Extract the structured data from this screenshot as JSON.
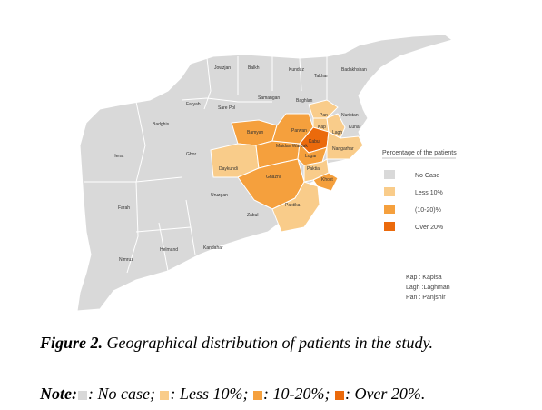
{
  "map": {
    "legend": {
      "title": "Percentage of the patients",
      "items": [
        {
          "label": "No Case",
          "color": "#d9d9d9"
        },
        {
          "label": "Less 10%",
          "color": "#f9cc8a"
        },
        {
          "label": "(10-20)%",
          "color": "#f5a03d"
        },
        {
          "label": "Over 20%",
          "color": "#eb6a0c"
        }
      ]
    },
    "abbreviations": [
      "Kap : Kapisa",
      "Lagh :Laghman",
      "Pan : Panjshir"
    ],
    "provinces": [
      {
        "name": "Jowzjan",
        "category": "No Case"
      },
      {
        "name": "Balkh",
        "category": "No Case"
      },
      {
        "name": "Kunduz",
        "category": "No Case"
      },
      {
        "name": "Takhar",
        "category": "No Case"
      },
      {
        "name": "Badakhshan",
        "category": "No Case"
      },
      {
        "name": "Faryab",
        "category": "No Case"
      },
      {
        "name": "Sare Pol",
        "category": "No Case"
      },
      {
        "name": "Samangan",
        "category": "No Case"
      },
      {
        "name": "Baghlan",
        "category": "No Case"
      },
      {
        "name": "Badghis",
        "category": "No Case"
      },
      {
        "name": "Nuristan",
        "category": "No Case"
      },
      {
        "name": "Herat",
        "category": "No Case"
      },
      {
        "name": "Ghor",
        "category": "No Case"
      },
      {
        "name": "Farah",
        "category": "No Case"
      },
      {
        "name": "Uruzgan",
        "category": "No Case"
      },
      {
        "name": "Zabul",
        "category": "No Case"
      },
      {
        "name": "Helmand",
        "category": "No Case"
      },
      {
        "name": "Kandahar",
        "category": "No Case"
      },
      {
        "name": "Nimruz",
        "category": "No Case"
      },
      {
        "name": "Kunar",
        "category": "No Case"
      },
      {
        "name": "Bamyan",
        "category": "(10-20)%"
      },
      {
        "name": "Daykundi",
        "category": "Less 10%"
      },
      {
        "name": "Ghazni",
        "category": "(10-20)%"
      },
      {
        "name": "Maidan Wardak",
        "category": "(10-20)%"
      },
      {
        "name": "Parwan",
        "category": "(10-20)%"
      },
      {
        "name": "Kap",
        "category": "Less 10%"
      },
      {
        "name": "Pan",
        "category": "Less 10%"
      },
      {
        "name": "Kabul",
        "category": "Over 20%"
      },
      {
        "name": "Lagh",
        "category": "Less 10%"
      },
      {
        "name": "Nangarhar",
        "category": "Less 10%"
      },
      {
        "name": "Logar",
        "category": "(10-20)%"
      },
      {
        "name": "Paktia",
        "category": "Less 10%"
      },
      {
        "name": "Khost",
        "category": "(10-20)%"
      },
      {
        "name": "Paktika",
        "category": "Less 10%"
      }
    ]
  },
  "caption": {
    "label": "Figure 2.",
    "text": "Geographical distribution of patients in the study."
  },
  "note": {
    "label": "Note:",
    "items": [
      ": No case;",
      ": Less 10%;",
      ": 10-20%;",
      ": Over 20%."
    ]
  }
}
